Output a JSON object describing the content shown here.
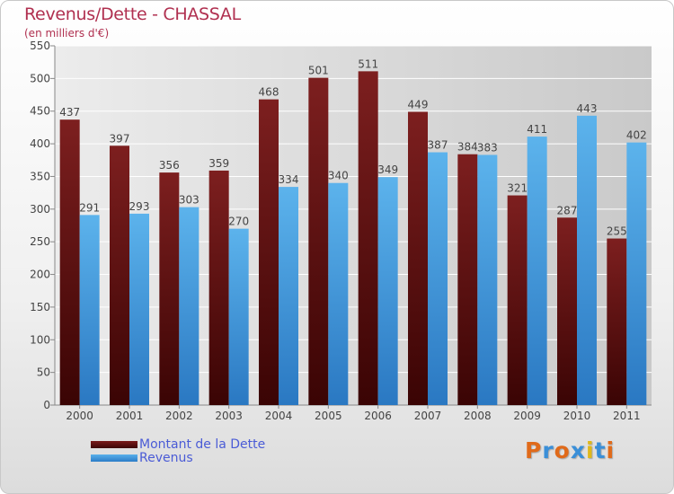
{
  "chart_data": {
    "type": "bar",
    "title": "Revenus/Dette - CHASSAL",
    "subtitle": "(en milliers d'€)",
    "categories": [
      "2000",
      "2001",
      "2002",
      "2003",
      "2004",
      "2005",
      "2006",
      "2007",
      "2008",
      "2009",
      "2010",
      "2011"
    ],
    "series": [
      {
        "name": "Montant de la Dette",
        "color": "#6e1414",
        "values": [
          437,
          397,
          356,
          359,
          468,
          501,
          511,
          449,
          384,
          321,
          287,
          255
        ]
      },
      {
        "name": "Revenus",
        "color": "#4aa3e3",
        "values": [
          291,
          293,
          303,
          270,
          334,
          340,
          349,
          387,
          383,
          411,
          443,
          402
        ]
      }
    ],
    "ylim": [
      0,
      550
    ],
    "yticks": [
      0,
      50,
      100,
      150,
      200,
      250,
      300,
      350,
      400,
      450,
      500,
      550
    ],
    "grid": true,
    "legend_position": "bottom-left"
  },
  "legend": {
    "items": [
      "Montant de la Dette",
      "Revenus"
    ]
  },
  "logo": {
    "text": "Proxiti",
    "colors": [
      "#e06a1a",
      "#3a8fd8",
      "#e06a1a",
      "#3a8fd8",
      "#e0b81a",
      "#3a8fd8",
      "#e06a1a"
    ]
  }
}
